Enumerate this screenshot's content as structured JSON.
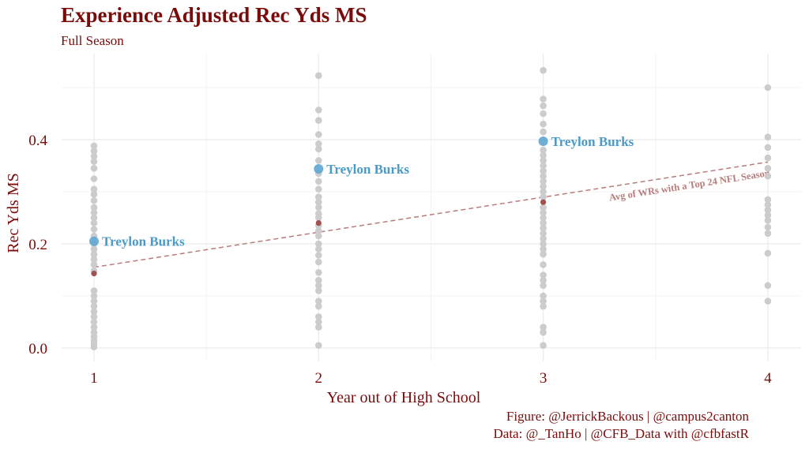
{
  "chart_data": {
    "type": "scatter",
    "title": "Experience Adjusted Rec Yds MS",
    "subtitle": "Full Season",
    "xlabel": "Year out of High School",
    "ylabel": "Rec Yds MS",
    "x_ticks": [
      1,
      2,
      3,
      4
    ],
    "y_ticks": [
      "0.0",
      "0.2",
      "0.4"
    ],
    "xlim": [
      0.85,
      4.15
    ],
    "ylim": [
      -0.02,
      0.55
    ],
    "grid": true,
    "colors": {
      "background_points": "#cccccc",
      "highlight": "#5fa6d2",
      "average": "#9e5252",
      "text": "#7a0b0b",
      "reference_line": "#b87c7c"
    },
    "series": [
      {
        "role": "all_players",
        "points": [
          [
            1,
            0.388
          ],
          [
            1,
            0.378
          ],
          [
            1,
            0.368
          ],
          [
            1,
            0.358
          ],
          [
            1,
            0.345
          ],
          [
            1,
            0.325
          ],
          [
            1,
            0.305
          ],
          [
            1,
            0.295
          ],
          [
            1,
            0.283
          ],
          [
            1,
            0.27
          ],
          [
            1,
            0.26
          ],
          [
            1,
            0.25
          ],
          [
            1,
            0.24
          ],
          [
            1,
            0.228
          ],
          [
            1,
            0.215
          ],
          [
            1,
            0.2
          ],
          [
            1,
            0.19
          ],
          [
            1,
            0.18
          ],
          [
            1,
            0.17
          ],
          [
            1,
            0.16
          ],
          [
            1,
            0.148
          ],
          [
            1,
            0.11
          ],
          [
            1,
            0.1
          ],
          [
            1,
            0.09
          ],
          [
            1,
            0.08
          ],
          [
            1,
            0.07
          ],
          [
            1,
            0.06
          ],
          [
            1,
            0.05
          ],
          [
            1,
            0.04
          ],
          [
            1,
            0.03
          ],
          [
            1,
            0.022
          ],
          [
            1,
            0.015
          ],
          [
            1,
            0.008
          ],
          [
            1,
            0.002
          ],
          [
            2,
            0.523
          ],
          [
            2,
            0.457
          ],
          [
            2,
            0.437
          ],
          [
            2,
            0.41
          ],
          [
            2,
            0.392
          ],
          [
            2,
            0.382
          ],
          [
            2,
            0.36
          ],
          [
            2,
            0.335
          ],
          [
            2,
            0.32
          ],
          [
            2,
            0.305
          ],
          [
            2,
            0.29
          ],
          [
            2,
            0.28
          ],
          [
            2,
            0.27
          ],
          [
            2,
            0.258
          ],
          [
            2,
            0.25
          ],
          [
            2,
            0.235
          ],
          [
            2,
            0.225
          ],
          [
            2,
            0.215
          ],
          [
            2,
            0.2
          ],
          [
            2,
            0.19
          ],
          [
            2,
            0.178
          ],
          [
            2,
            0.165
          ],
          [
            2,
            0.145
          ],
          [
            2,
            0.13
          ],
          [
            2,
            0.12
          ],
          [
            2,
            0.11
          ],
          [
            2,
            0.09
          ],
          [
            2,
            0.08
          ],
          [
            2,
            0.06
          ],
          [
            2,
            0.05
          ],
          [
            2,
            0.04
          ],
          [
            2,
            0.005
          ],
          [
            3,
            0.533
          ],
          [
            3,
            0.478
          ],
          [
            3,
            0.465
          ],
          [
            3,
            0.45
          ],
          [
            3,
            0.43
          ],
          [
            3,
            0.415
          ],
          [
            3,
            0.38
          ],
          [
            3,
            0.37
          ],
          [
            3,
            0.36
          ],
          [
            3,
            0.35
          ],
          [
            3,
            0.34
          ],
          [
            3,
            0.33
          ],
          [
            3,
            0.32
          ],
          [
            3,
            0.31
          ],
          [
            3,
            0.3
          ],
          [
            3,
            0.29
          ],
          [
            3,
            0.27
          ],
          [
            3,
            0.26
          ],
          [
            3,
            0.25
          ],
          [
            3,
            0.24
          ],
          [
            3,
            0.23
          ],
          [
            3,
            0.22
          ],
          [
            3,
            0.21
          ],
          [
            3,
            0.2
          ],
          [
            3,
            0.19
          ],
          [
            3,
            0.18
          ],
          [
            3,
            0.16
          ],
          [
            3,
            0.14
          ],
          [
            3,
            0.13
          ],
          [
            3,
            0.12
          ],
          [
            3,
            0.1
          ],
          [
            3,
            0.09
          ],
          [
            3,
            0.08
          ],
          [
            3,
            0.04
          ],
          [
            3,
            0.03
          ],
          [
            3,
            0.005
          ],
          [
            4,
            0.5
          ],
          [
            4,
            0.405
          ],
          [
            4,
            0.385
          ],
          [
            4,
            0.365
          ],
          [
            4,
            0.345
          ],
          [
            4,
            0.33
          ],
          [
            4,
            0.285
          ],
          [
            4,
            0.275
          ],
          [
            4,
            0.265
          ],
          [
            4,
            0.255
          ],
          [
            4,
            0.245
          ],
          [
            4,
            0.232
          ],
          [
            4,
            0.22
          ],
          [
            4,
            0.182
          ],
          [
            4,
            0.12
          ],
          [
            4,
            0.09
          ]
        ]
      },
      {
        "role": "highlight",
        "label": "Treylon Burks",
        "points": [
          [
            1,
            0.205
          ],
          [
            2,
            0.344
          ],
          [
            3,
            0.397
          ]
        ]
      },
      {
        "role": "year_average",
        "points": [
          [
            1,
            0.143
          ],
          [
            2,
            0.24
          ],
          [
            3,
            0.28
          ]
        ]
      }
    ],
    "reference_line": {
      "label": "Avg of WRs with a Top 24 NFL Season",
      "start": [
        1,
        0.155
      ],
      "end": [
        4,
        0.357
      ]
    }
  },
  "caption": {
    "line1": "Figure: @JerrickBackous | @campus2canton",
    "line2": "Data: @_TanHo | @CFB_Data with @cfbfastR"
  }
}
